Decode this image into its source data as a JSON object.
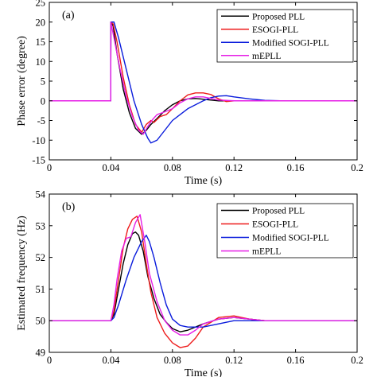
{
  "chart_data": [
    {
      "type": "line",
      "panel_label": "(a)",
      "xlabel": "Time (s)",
      "ylabel": "Phase error (degree)",
      "xlim": [
        0,
        0.2
      ],
      "ylim": [
        -15,
        25
      ],
      "xticks": [
        0,
        0.04,
        0.08,
        0.12,
        0.16,
        0.2
      ],
      "xtick_labels": [
        "0",
        "0.04",
        "0.08",
        "0.12",
        "0.16",
        "0.2"
      ],
      "yticks": [
        -15,
        -10,
        -5,
        0,
        5,
        10,
        15,
        20,
        25
      ],
      "ytick_labels": [
        "-15",
        "-10",
        "-5",
        "0",
        "5",
        "10",
        "15",
        "20",
        "25"
      ],
      "grid": false,
      "legend_position": "top-right",
      "series": [
        {
          "name": "Proposed PLL",
          "color": "#000000",
          "points": [
            [
              0,
              0
            ],
            [
              0.0399,
              0
            ],
            [
              0.04,
              20
            ],
            [
              0.0415,
              19
            ],
            [
              0.044,
              12
            ],
            [
              0.048,
              3
            ],
            [
              0.052,
              -3
            ],
            [
              0.056,
              -7
            ],
            [
              0.06,
              -8.5
            ],
            [
              0.063,
              -7.5
            ],
            [
              0.066,
              -6
            ],
            [
              0.07,
              -4.5
            ],
            [
              0.075,
              -2.5
            ],
            [
              0.08,
              -1
            ],
            [
              0.085,
              0
            ],
            [
              0.09,
              0.5
            ],
            [
              0.095,
              0.6
            ],
            [
              0.1,
              0.4
            ],
            [
              0.105,
              0.2
            ],
            [
              0.11,
              0
            ],
            [
              0.12,
              0
            ],
            [
              0.2,
              0
            ]
          ]
        },
        {
          "name": "ESOGI-PLL",
          "color": "#ee1c1c",
          "points": [
            [
              0,
              0
            ],
            [
              0.0399,
              0
            ],
            [
              0.04,
              20
            ],
            [
              0.0415,
              19.5
            ],
            [
              0.044,
              15
            ],
            [
              0.048,
              6
            ],
            [
              0.052,
              -1
            ],
            [
              0.056,
              -6
            ],
            [
              0.06,
              -8
            ],
            [
              0.063,
              -6
            ],
            [
              0.066,
              -5
            ],
            [
              0.068,
              -5.5
            ],
            [
              0.072,
              -4
            ],
            [
              0.076,
              -3.5
            ],
            [
              0.08,
              -2
            ],
            [
              0.085,
              0
            ],
            [
              0.09,
              1.5
            ],
            [
              0.095,
              2
            ],
            [
              0.1,
              2
            ],
            [
              0.105,
              1.6
            ],
            [
              0.11,
              0.5
            ],
            [
              0.115,
              -0.2
            ],
            [
              0.12,
              0
            ],
            [
              0.2,
              0
            ]
          ]
        },
        {
          "name": "Modified SOGI-PLL",
          "color": "#0a1cdc",
          "points": [
            [
              0,
              0
            ],
            [
              0.0399,
              0
            ],
            [
              0.04,
              20
            ],
            [
              0.042,
              20
            ],
            [
              0.045,
              16
            ],
            [
              0.05,
              8
            ],
            [
              0.055,
              0
            ],
            [
              0.06,
              -6
            ],
            [
              0.064,
              -9.5
            ],
            [
              0.066,
              -10.7
            ],
            [
              0.07,
              -10
            ],
            [
              0.075,
              -7.5
            ],
            [
              0.08,
              -5
            ],
            [
              0.085,
              -3.5
            ],
            [
              0.09,
              -2
            ],
            [
              0.1,
              0
            ],
            [
              0.105,
              0.8
            ],
            [
              0.11,
              1.2
            ],
            [
              0.115,
              1.3
            ],
            [
              0.12,
              1
            ],
            [
              0.13,
              0.5
            ],
            [
              0.14,
              0.1
            ],
            [
              0.15,
              0
            ],
            [
              0.2,
              0
            ]
          ]
        },
        {
          "name": "mEPLL",
          "color": "#e61ee6",
          "points": [
            [
              0,
              0
            ],
            [
              0.0399,
              0
            ],
            [
              0.04,
              20
            ],
            [
              0.042,
              16
            ],
            [
              0.046,
              8
            ],
            [
              0.05,
              1
            ],
            [
              0.054,
              -4
            ],
            [
              0.058,
              -7.5
            ],
            [
              0.061,
              -8.5
            ],
            [
              0.064,
              -6.5
            ],
            [
              0.067,
              -4.8
            ],
            [
              0.07,
              -3.5
            ],
            [
              0.075,
              -2.8
            ],
            [
              0.08,
              -2
            ],
            [
              0.085,
              -0.5
            ],
            [
              0.09,
              0.5
            ],
            [
              0.095,
              1
            ],
            [
              0.1,
              1
            ],
            [
              0.105,
              0.6
            ],
            [
              0.11,
              0.2
            ],
            [
              0.12,
              0
            ],
            [
              0.2,
              0
            ]
          ]
        }
      ]
    },
    {
      "type": "line",
      "panel_label": "(b)",
      "xlabel": "Time (s)",
      "ylabel": "Estimated frequency (Hz)",
      "xlim": [
        0,
        0.2
      ],
      "ylim": [
        49,
        54
      ],
      "xticks": [
        0,
        0.04,
        0.08,
        0.12,
        0.16,
        0.2
      ],
      "xtick_labels": [
        "0",
        "0.04",
        "0.08",
        "0.12",
        "0.16",
        "0.2"
      ],
      "yticks": [
        49,
        50,
        51,
        52,
        53,
        54
      ],
      "ytick_labels": [
        "49",
        "50",
        "51",
        "52",
        "53",
        "54"
      ],
      "grid": false,
      "legend_position": "top-right",
      "series": [
        {
          "name": "Proposed PLL",
          "color": "#000000",
          "points": [
            [
              0,
              50
            ],
            [
              0.04,
              50
            ],
            [
              0.042,
              50.2
            ],
            [
              0.045,
              51
            ],
            [
              0.048,
              51.8
            ],
            [
              0.051,
              52.4
            ],
            [
              0.054,
              52.75
            ],
            [
              0.056,
              52.8
            ],
            [
              0.058,
              52.7
            ],
            [
              0.061,
              52.2
            ],
            [
              0.064,
              51.4
            ],
            [
              0.068,
              50.7
            ],
            [
              0.072,
              50.2
            ],
            [
              0.076,
              49.95
            ],
            [
              0.08,
              49.75
            ],
            [
              0.085,
              49.65
            ],
            [
              0.09,
              49.7
            ],
            [
              0.1,
              49.9
            ],
            [
              0.11,
              50.05
            ],
            [
              0.12,
              50.1
            ],
            [
              0.13,
              50.05
            ],
            [
              0.14,
              50
            ],
            [
              0.2,
              50
            ]
          ]
        },
        {
          "name": "ESOGI-PLL",
          "color": "#ee1c1c",
          "points": [
            [
              0,
              50
            ],
            [
              0.04,
              50
            ],
            [
              0.042,
              50.3
            ],
            [
              0.045,
              51.3
            ],
            [
              0.048,
              52.3
            ],
            [
              0.051,
              52.9
            ],
            [
              0.054,
              53.2
            ],
            [
              0.057,
              53.3
            ],
            [
              0.06,
              52.8
            ],
            [
              0.063,
              51.8
            ],
            [
              0.066,
              50.9
            ],
            [
              0.07,
              50.1
            ],
            [
              0.075,
              49.6
            ],
            [
              0.08,
              49.3
            ],
            [
              0.085,
              49.15
            ],
            [
              0.09,
              49.2
            ],
            [
              0.095,
              49.45
            ],
            [
              0.1,
              49.8
            ],
            [
              0.11,
              50.1
            ],
            [
              0.12,
              50.15
            ],
            [
              0.13,
              50.05
            ],
            [
              0.14,
              50
            ],
            [
              0.2,
              50
            ]
          ]
        },
        {
          "name": "Modified SOGI-PLL",
          "color": "#0a1cdc",
          "points": [
            [
              0,
              50
            ],
            [
              0.04,
              50
            ],
            [
              0.042,
              50.1
            ],
            [
              0.045,
              50.5
            ],
            [
              0.05,
              51.3
            ],
            [
              0.055,
              52.0
            ],
            [
              0.06,
              52.5
            ],
            [
              0.063,
              52.7
            ],
            [
              0.065,
              52.5
            ],
            [
              0.068,
              52
            ],
            [
              0.072,
              51.2
            ],
            [
              0.076,
              50.5
            ],
            [
              0.08,
              50.05
            ],
            [
              0.085,
              49.85
            ],
            [
              0.09,
              49.8
            ],
            [
              0.1,
              49.8
            ],
            [
              0.11,
              49.9
            ],
            [
              0.12,
              50
            ],
            [
              0.13,
              50
            ],
            [
              0.2,
              50
            ]
          ]
        },
        {
          "name": "mEPLL",
          "color": "#e61ee6",
          "points": [
            [
              0,
              50
            ],
            [
              0.04,
              50
            ],
            [
              0.042,
              50.5
            ],
            [
              0.044,
              51.3
            ],
            [
              0.047,
              52.2
            ],
            [
              0.05,
              52.6
            ],
            [
              0.053,
              52.65
            ],
            [
              0.056,
              53.1
            ],
            [
              0.059,
              53.35
            ],
            [
              0.062,
              52.5
            ],
            [
              0.065,
              51.5
            ],
            [
              0.07,
              50.6
            ],
            [
              0.075,
              50
            ],
            [
              0.08,
              49.7
            ],
            [
              0.085,
              49.55
            ],
            [
              0.09,
              49.55
            ],
            [
              0.095,
              49.7
            ],
            [
              0.1,
              49.9
            ],
            [
              0.11,
              50.05
            ],
            [
              0.12,
              50.1
            ],
            [
              0.13,
              50.05
            ],
            [
              0.14,
              50
            ],
            [
              0.2,
              50
            ]
          ]
        }
      ]
    }
  ]
}
